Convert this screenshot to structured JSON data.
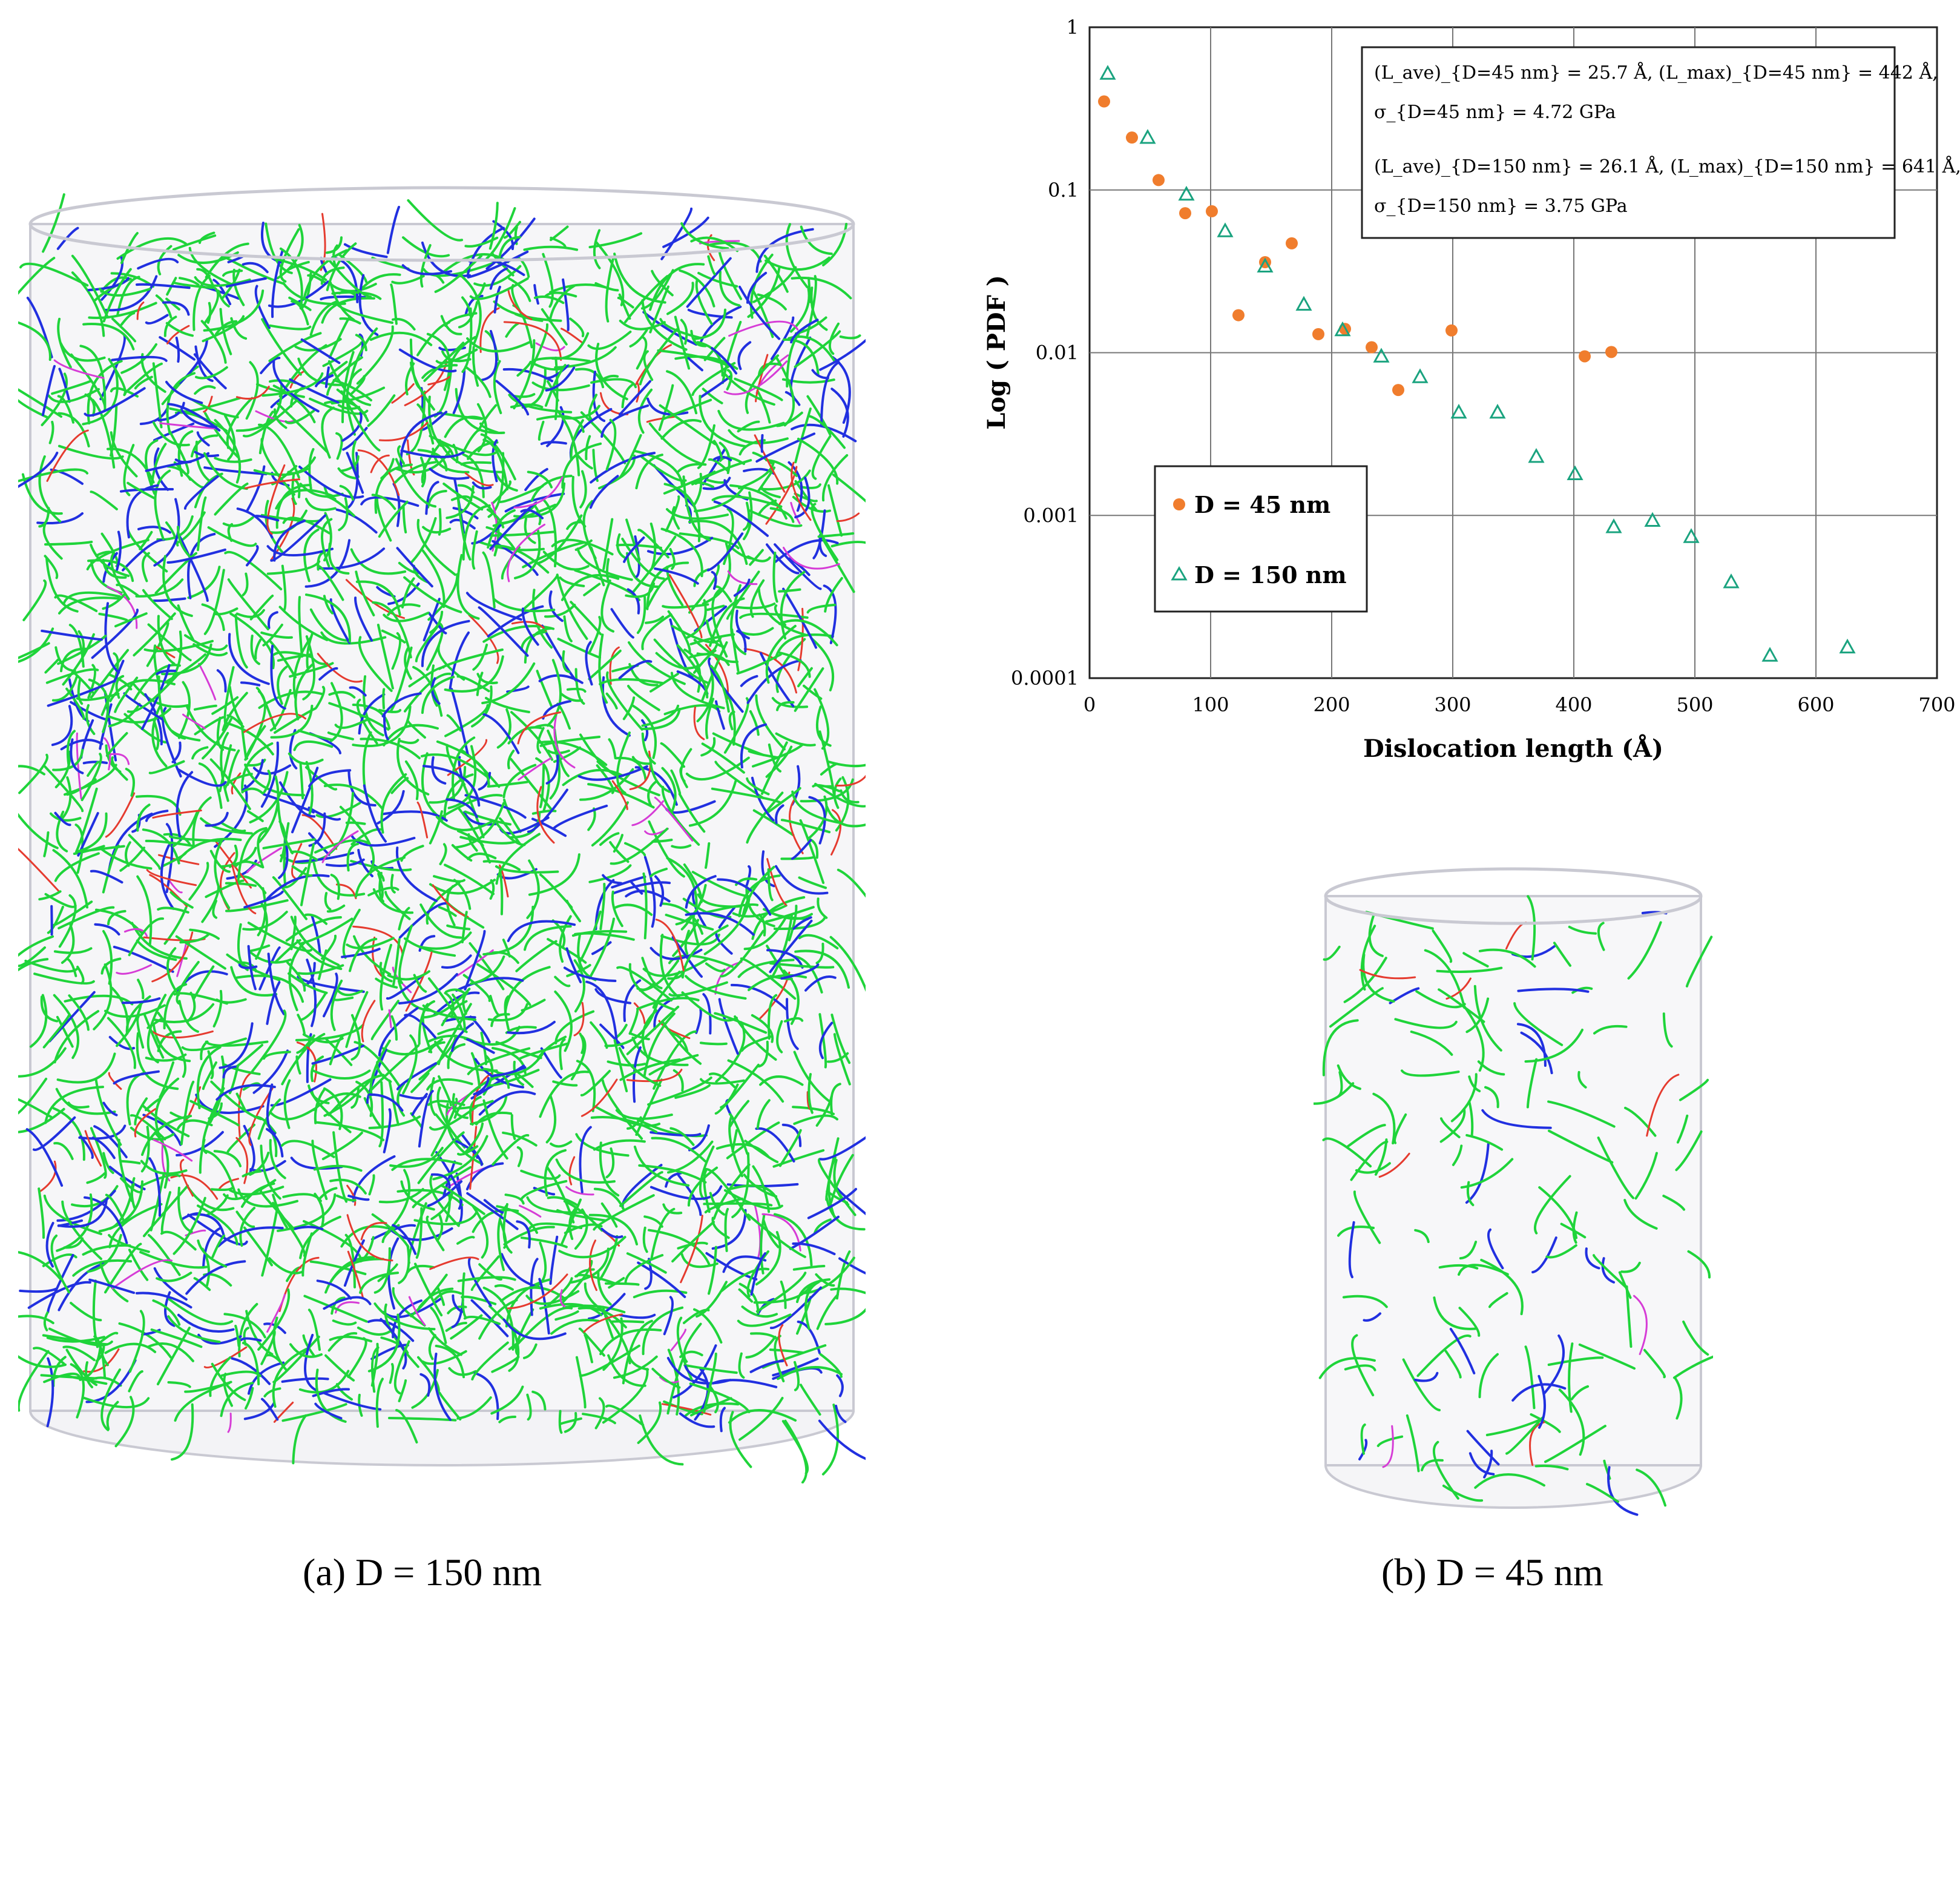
{
  "captions": {
    "a": "(a) D = 150 nm",
    "b": "(b) D = 45 nm"
  },
  "colors": {
    "green": "#1fd43a",
    "blue": "#2130e0",
    "red": "#e53b2f",
    "magenta": "#d63cd6",
    "orange": "#f07d2d",
    "teal": "#1aa37f",
    "shell": "#c9c9d2"
  },
  "chart_data": {
    "type": "scatter",
    "xlabel": "Dislocation length (Å)",
    "ylabel": "Log ( PDF )",
    "xlim": [
      0,
      700
    ],
    "ylim": [
      0.0001,
      1
    ],
    "yscale": "log",
    "grid": true,
    "x_ticks": [
      "0",
      "100",
      "200",
      "300",
      "400",
      "500",
      "600",
      "700"
    ],
    "y_ticks": [
      "1",
      "0.1",
      "0.01",
      "0.001",
      "0.0001"
    ],
    "legend": {
      "placement": "lower-left",
      "entries": [
        "D = 45 nm",
        "D = 150 nm"
      ]
    },
    "annotation": {
      "line1": "(L_ave)_{D=45 nm} = 25.7 Å, (L_max)_{D=45 nm} = 442 Å,",
      "line2": "σ_{D=45 nm} = 4.72 GPa",
      "line3": "(L_ave)_{D=150 nm} = 26.1 Å, (L_max)_{D=150 nm} = 641 Å,",
      "line4": "σ_{D=150 nm} = 3.75 GPa"
    },
    "series": [
      {
        "name": "D = 45 nm",
        "marker": "circle",
        "color": "#f07d2d",
        "x": [
          12,
          35,
          57,
          79,
          101,
          123,
          145,
          167,
          189,
          211,
          233,
          255,
          299,
          409,
          431
        ],
        "y": [
          0.35,
          0.21,
          0.115,
          0.072,
          0.074,
          0.017,
          0.036,
          0.047,
          0.013,
          0.014,
          0.0108,
          0.0059,
          0.0137,
          0.0095,
          0.0101
        ]
      },
      {
        "name": "D = 150 nm",
        "marker": "triangle",
        "color": "#1aa37f",
        "x": [
          15,
          48,
          80,
          112,
          145,
          177,
          209,
          241,
          273,
          305,
          337,
          369,
          401,
          433,
          465,
          497,
          530,
          562,
          626
        ],
        "y": [
          0.52,
          0.21,
          0.094,
          0.056,
          0.034,
          0.0198,
          0.0138,
          0.0095,
          0.0071,
          0.0043,
          0.0043,
          0.0023,
          0.0018,
          0.00085,
          0.00093,
          0.00074,
          0.00039,
          0.000138,
          0.000155
        ]
      }
    ]
  }
}
